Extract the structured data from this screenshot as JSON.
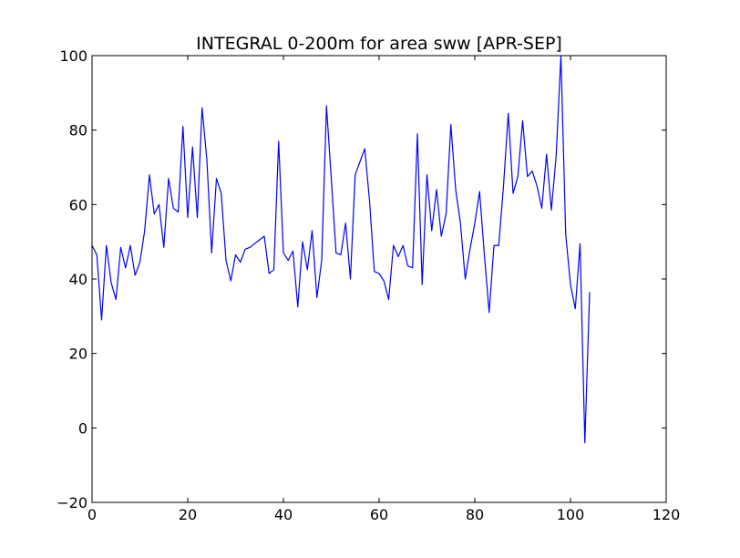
{
  "chart_data": {
    "type": "line",
    "title": "INTEGRAL 0-200m for area sww [APR-SEP]",
    "xlabel": "",
    "ylabel": "",
    "xlim": [
      0,
      120
    ],
    "ylim": [
      -20,
      100
    ],
    "xticks": [
      0,
      20,
      40,
      60,
      80,
      100,
      120
    ],
    "yticks": [
      -20,
      0,
      20,
      40,
      60,
      80,
      100
    ],
    "xtick_labels": [
      "0",
      "20",
      "40",
      "60",
      "80",
      "100",
      "120"
    ],
    "ytick_labels": [
      "−20",
      "0",
      "20",
      "40",
      "60",
      "80",
      "100"
    ],
    "grid": false,
    "legend": "none",
    "series": [
      {
        "color": "#0000ff",
        "x": [
          0,
          1,
          2,
          3,
          4,
          5,
          6,
          7,
          8,
          9,
          10,
          11,
          12,
          13,
          14,
          15,
          16,
          17,
          18,
          19,
          20,
          21,
          22,
          23,
          24,
          25,
          26,
          27,
          28,
          29,
          30,
          31,
          32,
          33,
          34,
          35,
          36,
          37,
          38,
          39,
          40,
          41,
          42,
          43,
          44,
          45,
          46,
          47,
          48,
          49,
          50,
          51,
          52,
          53,
          54,
          55,
          56,
          57,
          58,
          59,
          60,
          61,
          62,
          63,
          64,
          65,
          66,
          67,
          68,
          69,
          70,
          71,
          72,
          73,
          74,
          75,
          76,
          77,
          78,
          79,
          80,
          81,
          82,
          83,
          84,
          85,
          86,
          87,
          88,
          89,
          90,
          91,
          92,
          93,
          94,
          95,
          96,
          97,
          98,
          99,
          100,
          101,
          102,
          103,
          104
        ],
        "values": [
          49,
          46.5,
          29,
          49,
          39,
          34.5,
          48.5,
          43,
          49,
          41,
          44.5,
          53,
          68,
          57.5,
          60,
          48.5,
          67,
          59,
          58,
          81,
          56.5,
          75.5,
          56.5,
          86,
          72,
          47,
          67,
          63,
          45,
          39.5,
          46.5,
          44.5,
          48,
          48.5,
          49.5,
          50.5,
          51.5,
          41.5,
          42.5,
          77,
          47,
          45,
          47.5,
          32.5,
          50,
          42.5,
          53,
          35,
          45,
          86.5,
          67,
          47,
          46.5,
          55,
          40,
          68,
          71.5,
          75,
          61,
          42,
          41.5,
          39.5,
          34.5,
          49,
          46,
          49,
          43.5,
          43,
          79,
          38.5,
          68,
          53,
          64,
          51.5,
          57.5,
          81.5,
          64,
          55,
          40,
          48,
          55,
          63.5,
          46.5,
          31,
          49,
          49,
          65,
          84.5,
          63,
          67.5,
          82.5,
          67.5,
          69,
          65,
          59,
          73.5,
          58.5,
          73,
          100,
          52,
          38.5,
          32,
          49.5,
          -4,
          36.5
        ]
      }
    ]
  }
}
